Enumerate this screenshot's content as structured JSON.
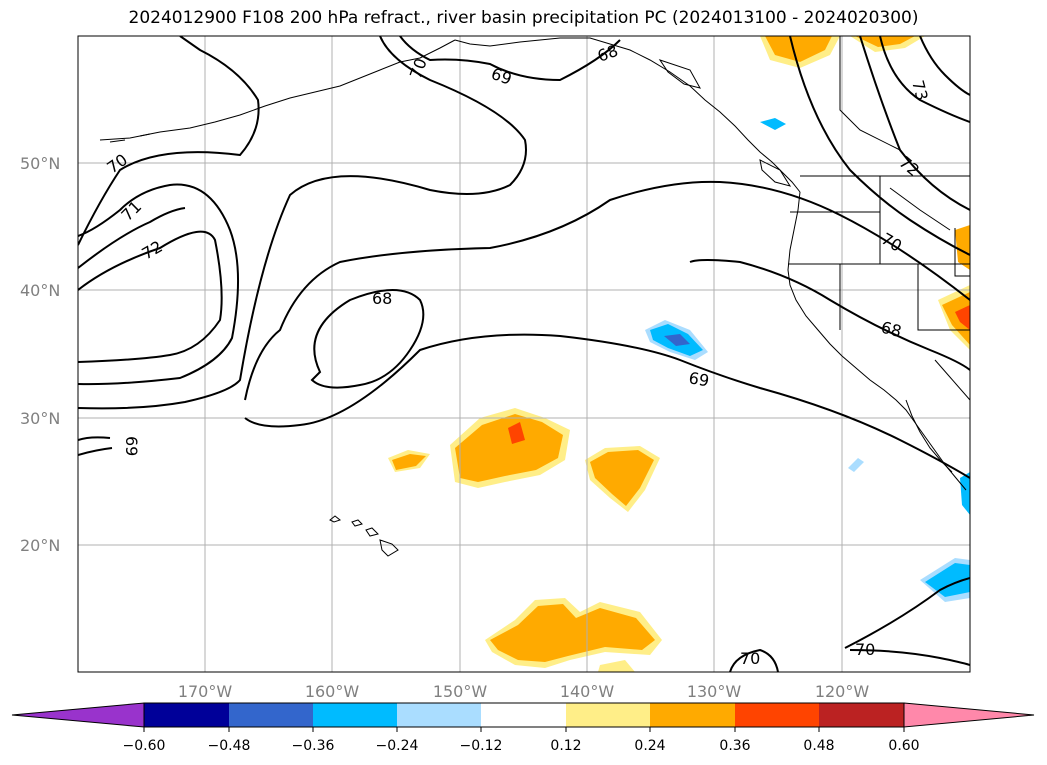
{
  "title": "2024012900 F108 200 hPa refract., river basin precipitation PC (2024013100 - 2024020300)",
  "map": {
    "lon_range": [
      -180,
      -110
    ],
    "lat_range": [
      10,
      60
    ],
    "lat_ticks": [
      {
        "value": 50,
        "label": "50°N"
      },
      {
        "value": 40,
        "label": "40°N"
      },
      {
        "value": 30,
        "label": "30°N"
      },
      {
        "value": 20,
        "label": "20°N"
      }
    ],
    "lon_ticks": [
      {
        "value": -170,
        "label": "170°W"
      },
      {
        "value": -160,
        "label": "160°W"
      },
      {
        "value": -150,
        "label": "150°W"
      },
      {
        "value": -140,
        "label": "140°W"
      },
      {
        "value": -130,
        "label": "130°W"
      },
      {
        "value": -120,
        "label": "120°W"
      }
    ],
    "grid": true,
    "contour_labels": [
      "68",
      "69",
      "70",
      "71",
      "72",
      "73",
      "68",
      "69",
      "68",
      "69",
      "70",
      "72",
      "70",
      "70",
      "69",
      "70",
      "70"
    ]
  },
  "colorbar": {
    "ticks": [
      "−0.60",
      "−0.48",
      "−0.36",
      "−0.24",
      "−0.12",
      "0.12",
      "0.24",
      "0.36",
      "0.48",
      "0.60"
    ],
    "colors": [
      "#9933cc",
      "#000099",
      "#3366cc",
      "#00bbff",
      "#aaddff",
      "#ffffff",
      "#ffee88",
      "#ffaa00",
      "#ff4400",
      "#bb2222",
      "#ff88aa"
    ],
    "extend": "both"
  }
}
